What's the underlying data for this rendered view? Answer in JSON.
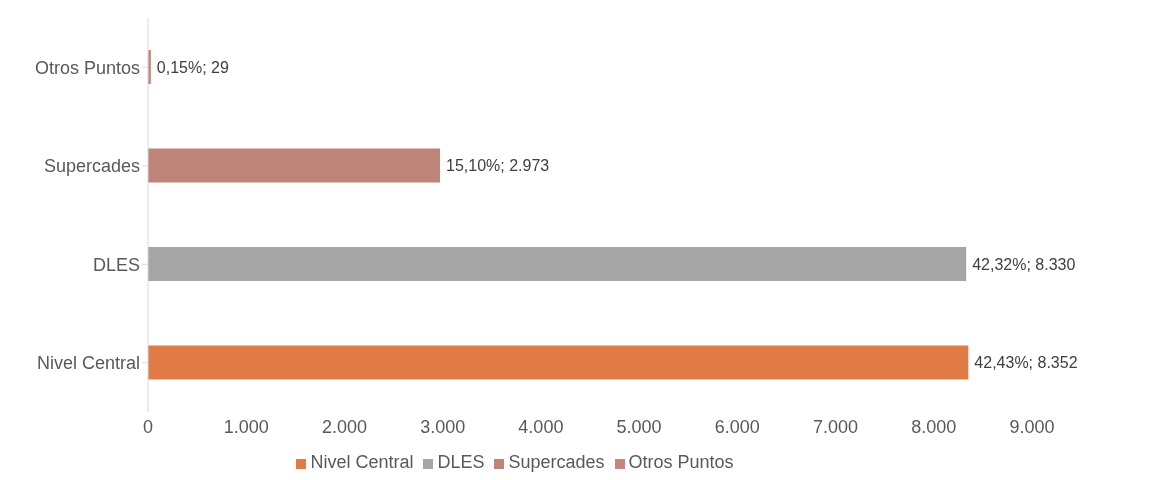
{
  "chart_data": {
    "type": "bar",
    "orientation": "horizontal",
    "stacked": true,
    "categories": [
      "Otros Puntos",
      "Supercades",
      "DLES",
      "Nivel Central"
    ],
    "series": [
      {
        "name": "Nivel Central",
        "color": "#e07b45",
        "values": [
          null,
          null,
          null,
          8352
        ],
        "value_labels": [
          null,
          null,
          null,
          "42,43%; 8.352"
        ]
      },
      {
        "name": "DLES",
        "color": "#a5a5a5",
        "values": [
          null,
          null,
          8330,
          null
        ],
        "value_labels": [
          null,
          null,
          "42,32%; 8.330",
          null
        ]
      },
      {
        "name": "Supercades",
        "color": "#be8478",
        "values": [
          null,
          2973,
          null,
          null
        ],
        "value_labels": [
          null,
          "15,10%; 2.973",
          null,
          null
        ]
      },
      {
        "name": "Otros Puntos",
        "color": "#c4877c",
        "values": [
          29,
          null,
          null,
          null
        ],
        "value_labels": [
          "0,15%; 29",
          null,
          null,
          null
        ]
      }
    ],
    "xlim": [
      0,
      9000
    ],
    "xticks": [
      {
        "value": 0,
        "label": "0"
      },
      {
        "value": 1000,
        "label": "1.000"
      },
      {
        "value": 2000,
        "label": "2.000"
      },
      {
        "value": 3000,
        "label": "3.000"
      },
      {
        "value": 4000,
        "label": "4.000"
      },
      {
        "value": 5000,
        "label": "5.000"
      },
      {
        "value": 6000,
        "label": "6.000"
      },
      {
        "value": 7000,
        "label": "7.000"
      },
      {
        "value": 8000,
        "label": "8.000"
      },
      {
        "value": 9000,
        "label": "9.000"
      }
    ],
    "grid": false,
    "legend": "bottom"
  }
}
